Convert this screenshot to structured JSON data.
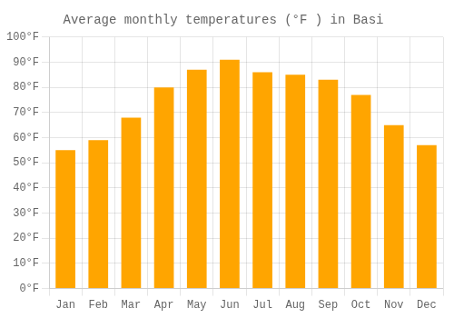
{
  "chart_data": {
    "type": "bar",
    "title": "Average monthly temperatures (°F ) in Basi",
    "categories": [
      "Jan",
      "Feb",
      "Mar",
      "Apr",
      "May",
      "Jun",
      "Jul",
      "Aug",
      "Sep",
      "Oct",
      "Nov",
      "Dec"
    ],
    "values": [
      55,
      59,
      68,
      80,
      87,
      91,
      86,
      85,
      83,
      77,
      65,
      57
    ],
    "color": "#FFA500",
    "ylim": [
      0,
      100
    ],
    "yticks": [
      {
        "value": 0,
        "label": "0°F"
      },
      {
        "value": 10,
        "label": "10°F"
      },
      {
        "value": 20,
        "label": "20°F"
      },
      {
        "value": 30,
        "label": "30°F"
      },
      {
        "value": 40,
        "label": "40°F"
      },
      {
        "value": 50,
        "label": "50°F"
      },
      {
        "value": 60,
        "label": "60°F"
      },
      {
        "value": 70,
        "label": "70°F"
      },
      {
        "value": 80,
        "label": "80°F"
      },
      {
        "value": 90,
        "label": "90°F"
      },
      {
        "value": 100,
        "label": "100°F"
      }
    ],
    "grid": true
  }
}
